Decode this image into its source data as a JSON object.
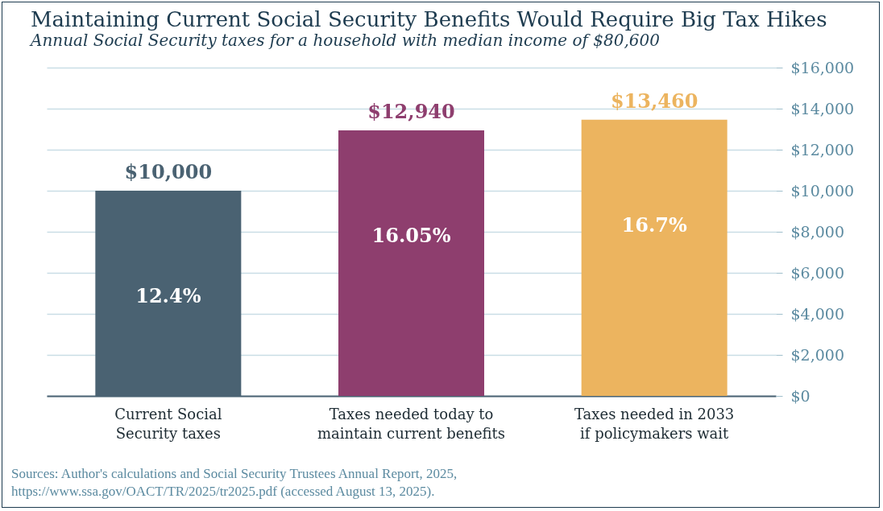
{
  "chart_data": {
    "type": "bar",
    "title": "Maintaining Current Social Security Benefits Would Require Big Tax Hikes",
    "subtitle": "Annual Social Security taxes for a household with median income of $80,600",
    "categories": [
      "Current Social Security taxes",
      "Taxes needed today to maintain current benefits",
      "Taxes needed in 2033 if policymakers wait"
    ],
    "values": [
      10000,
      12940,
      13460
    ],
    "colors": [
      "#4a6272",
      "#8e3e6e",
      "#ecb45f"
    ],
    "value_labels": [
      "$10,000",
      "$12,940",
      "$13,460"
    ],
    "ylim": [
      0,
      16000
    ],
    "yticks": [
      {
        "value": 0,
        "label": "$0"
      },
      {
        "value": 2000,
        "label": "$2,000"
      },
      {
        "value": 4000,
        "label": "$4,000"
      },
      {
        "value": 6000,
        "label": "$6,000"
      },
      {
        "value": 8000,
        "label": "$8,000"
      },
      {
        "value": 10000,
        "label": "$10,000"
      },
      {
        "value": 12000,
        "label": "$12,000"
      },
      {
        "value": 14000,
        "label": "$14,000"
      },
      {
        "value": 16000,
        "label": "$16,000"
      }
    ],
    "grid": "y",
    "annotations": [
      "12.4%",
      "16.05%",
      "16.7%",
      "Sources: Author's calculations and Social Security Trustees Annual Report, 2025, https://www.ssa.gov/OACT/TR/2025/tr2025.pdf (accessed August 13, 2025)."
    ]
  }
}
